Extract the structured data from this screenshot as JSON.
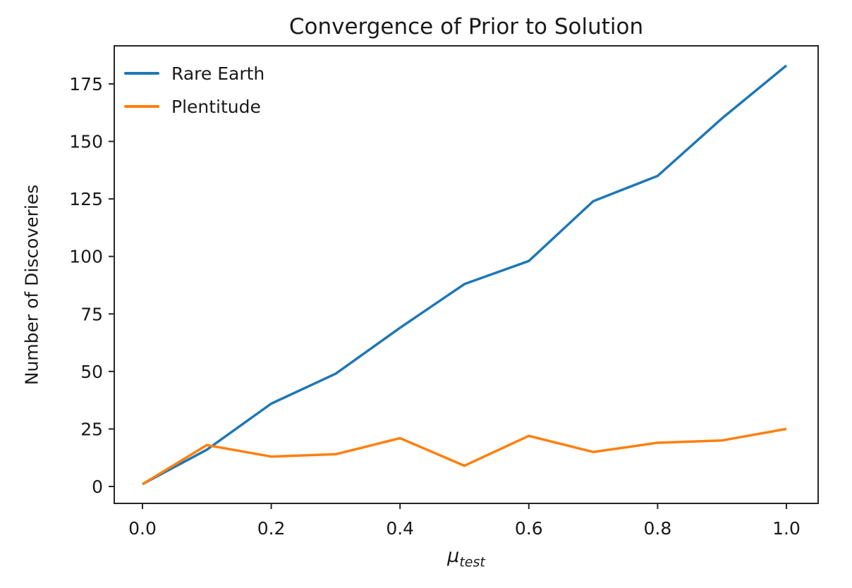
{
  "chart_data": {
    "type": "line",
    "title": "Convergence of Prior to Solution",
    "ylabel": "Number of Discoveries",
    "xlabel": {
      "base": "μ",
      "sub": "test"
    },
    "x": [
      0.0,
      0.1,
      0.2,
      0.3,
      0.4,
      0.5,
      0.6,
      0.7,
      0.8,
      0.9,
      1.0
    ],
    "series": [
      {
        "name": "Rare Earth",
        "color": "#1f77b4",
        "values": [
          1,
          16,
          36,
          49,
          69,
          88,
          98,
          124,
          135,
          160,
          183
        ]
      },
      {
        "name": "Plentitude",
        "color": "#ff7f0e",
        "values": [
          1,
          18,
          13,
          14,
          21,
          9,
          22,
          15,
          19,
          20,
          25
        ]
      }
    ],
    "xticks": [
      0.0,
      0.2,
      0.4,
      0.6,
      0.8,
      1.0
    ],
    "xtick_labels": [
      "0.0",
      "0.2",
      "0.4",
      "0.6",
      "0.8",
      "1.0"
    ],
    "yticks": [
      0,
      25,
      50,
      75,
      100,
      125,
      150,
      175
    ],
    "ytick_labels": [
      "0",
      "25",
      "50",
      "75",
      "100",
      "125",
      "150",
      "175"
    ],
    "xlim": [
      -0.05,
      1.05
    ],
    "ylim": [
      -8,
      191
    ],
    "grid": false,
    "legend_position": "upper left",
    "legend_frame": false,
    "background": "#ffffff",
    "axis_color": "#262626"
  }
}
